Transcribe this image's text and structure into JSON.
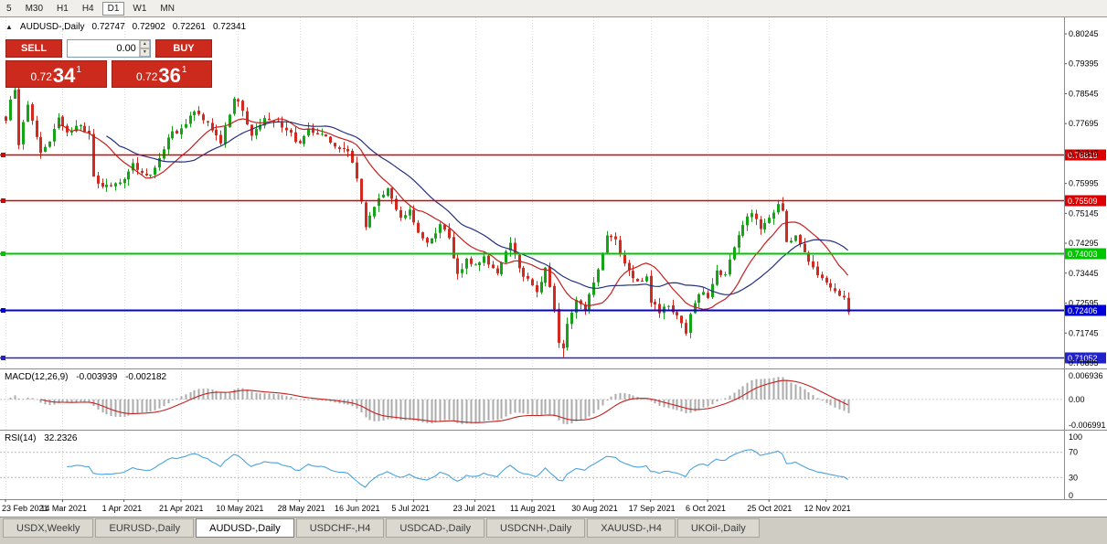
{
  "toolbar": {
    "timeframes": [
      "5",
      "M30",
      "H1",
      "H4",
      "D1",
      "W1",
      "MN"
    ],
    "active_timeframe": "D1"
  },
  "chart_header": {
    "collapse_icon": "▲",
    "symbol": "AUDUSD-,Daily",
    "open": "0.72747",
    "high": "0.72902",
    "low": "0.72261",
    "close": "0.72341"
  },
  "one_click": {
    "sell_label": "SELL",
    "buy_label": "BUY",
    "volume": "0.00",
    "sell_big": "0.72",
    "sell_pips": "34",
    "sell_sup": "1",
    "buy_big": "0.72",
    "buy_pips": "36",
    "buy_sup": "1"
  },
  "indicators": {
    "macd_label": "MACD(12,26,9)",
    "macd_value": "-0.003939",
    "macd_signal": "-0.002182",
    "rsi_label": "RSI(14)",
    "rsi_value": "32.2326"
  },
  "tabs": {
    "active": "AUDUSD-,Daily",
    "items": [
      {
        "label": "USDX,Weekly"
      },
      {
        "label": "EURUSD-,Daily"
      },
      {
        "label": "AUDUSD-,Daily"
      },
      {
        "label": "USDCHF-,H4"
      },
      {
        "label": "USDCAD-,Daily"
      },
      {
        "label": "USDCNH-,Daily"
      },
      {
        "label": "XAUUSD-,H4"
      },
      {
        "label": "UKOil-,Daily"
      }
    ]
  },
  "chart_data": {
    "type": "candlestick",
    "symbol": "AUDUSD-",
    "timeframe": "Daily",
    "candle_count": 193,
    "up_color": "#17a317",
    "down_color": "#d22a1e",
    "close_anchors": [
      [
        0,
        0.7775
      ],
      [
        1,
        0.784
      ],
      [
        2,
        0.7868
      ],
      [
        3,
        0.7706
      ],
      [
        4,
        0.7773
      ],
      [
        5,
        0.7824
      ],
      [
        8,
        0.7688
      ],
      [
        10,
        0.7716
      ],
      [
        12,
        0.7784
      ],
      [
        14,
        0.7747
      ],
      [
        17,
        0.7762
      ],
      [
        19,
        0.7742
      ],
      [
        20,
        0.7622
      ],
      [
        22,
        0.7588
      ],
      [
        25,
        0.7598
      ],
      [
        27,
        0.7612
      ],
      [
        29,
        0.7658
      ],
      [
        32,
        0.7622
      ],
      [
        34,
        0.7644
      ],
      [
        37,
        0.7732
      ],
      [
        40,
        0.7758
      ],
      [
        43,
        0.7802
      ],
      [
        46,
        0.7772
      ],
      [
        49,
        0.7712
      ],
      [
        52,
        0.7843
      ],
      [
        53,
        0.7834
      ],
      [
        56,
        0.7734
      ],
      [
        59,
        0.7786
      ],
      [
        62,
        0.7778
      ],
      [
        64,
        0.7752
      ],
      [
        67,
        0.7712
      ],
      [
        69,
        0.7756
      ],
      [
        72,
        0.7742
      ],
      [
        75,
        0.7702
      ],
      [
        78,
        0.7692
      ],
      [
        80,
        0.7612
      ],
      [
        82,
        0.7478
      ],
      [
        84,
        0.7532
      ],
      [
        87,
        0.7588
      ],
      [
        90,
        0.7502
      ],
      [
        92,
        0.7526
      ],
      [
        94,
        0.7462
      ],
      [
        96,
        0.7432
      ],
      [
        99,
        0.7482
      ],
      [
        101,
        0.7442
      ],
      [
        103,
        0.7342
      ],
      [
        105,
        0.7386
      ],
      [
        107,
        0.7366
      ],
      [
        109,
        0.7392
      ],
      [
        112,
        0.7346
      ],
      [
        115,
        0.7428
      ],
      [
        117,
        0.7358
      ],
      [
        119,
        0.7328
      ],
      [
        121,
        0.7292
      ],
      [
        123,
        0.7362
      ],
      [
        125,
        0.7242
      ],
      [
        126,
        0.7148
      ],
      [
        127,
        0.713
      ],
      [
        128,
        0.7202
      ],
      [
        130,
        0.7272
      ],
      [
        132,
        0.7242
      ],
      [
        134,
        0.7316
      ],
      [
        136,
        0.7402
      ],
      [
        137,
        0.7452
      ],
      [
        139,
        0.7442
      ],
      [
        141,
        0.7372
      ],
      [
        142,
        0.7356
      ],
      [
        144,
        0.7322
      ],
      [
        146,
        0.7336
      ],
      [
        147,
        0.7262
      ],
      [
        149,
        0.7232
      ],
      [
        151,
        0.7252
      ],
      [
        152,
        0.7236
      ],
      [
        154,
        0.7202
      ],
      [
        155,
        0.7172
      ],
      [
        156,
        0.7226
      ],
      [
        157,
        0.7262
      ],
      [
        159,
        0.7292
      ],
      [
        160,
        0.7274
      ],
      [
        162,
        0.7352
      ],
      [
        164,
        0.734
      ],
      [
        166,
        0.7418
      ],
      [
        168,
        0.7482
      ],
      [
        170,
        0.7516
      ],
      [
        172,
        0.7472
      ],
      [
        174,
        0.7502
      ],
      [
        176,
        0.7542
      ],
      [
        177,
        0.7522
      ],
      [
        178,
        0.7432
      ],
      [
        180,
        0.7452
      ],
      [
        182,
        0.7402
      ],
      [
        184,
        0.7362
      ],
      [
        186,
        0.7332
      ],
      [
        188,
        0.7306
      ],
      [
        189,
        0.7296
      ],
      [
        191,
        0.7274
      ],
      [
        192,
        0.72341
      ]
    ],
    "forced_extremes": [
      {
        "index": 127,
        "low": 0.7106
      },
      {
        "index": 176,
        "high": 0.7553
      }
    ],
    "last_ohlc": {
      "open": 0.72747,
      "high": 0.72902,
      "low": 0.72261,
      "close": 0.72341
    },
    "x_ticks": {
      "indices": [
        0,
        13,
        27,
        40,
        53,
        67,
        80,
        93,
        107,
        120,
        134,
        147,
        160,
        174,
        187
      ],
      "labels": [
        "23 Feb 2021",
        "14 Mar 2021",
        "1 Apr 2021",
        "21 Apr 2021",
        "10 May 2021",
        "28 May 2021",
        "16 Jun 2021",
        "5 Jul 2021",
        "23 Jul 2021",
        "11 Aug 2021",
        "30 Aug 2021",
        "17 Sep 2021",
        "6 Oct 2021",
        "25 Oct 2021",
        "12 Nov 2021"
      ]
    },
    "y_axis": {
      "ticks": [
        0.80245,
        0.79395,
        0.78545,
        0.77695,
        0.76845,
        0.75995,
        0.75145,
        0.74295,
        0.73445,
        0.72595,
        0.71745,
        0.70895
      ],
      "tick_labels": [
        "0.80245",
        "0.79395",
        "0.78545",
        "0.77695",
        "0.76845",
        "0.75995",
        "0.75145",
        "0.74295",
        "0.73445",
        "0.72595",
        "0.71745",
        "0.70895"
      ]
    },
    "h_lines": [
      {
        "price": 0.76819,
        "label": "0.76819",
        "color": "#dd0000",
        "width": 1.4
      },
      {
        "price": 0.75509,
        "label": "0.75509",
        "color": "#dd0000",
        "width": 1.4
      },
      {
        "price": 0.74003,
        "label": "0.74003",
        "color": "#00c400",
        "width": 2
      },
      {
        "price": 0.72406,
        "label": "0.72406",
        "color": "#0000d8",
        "width": 2
      },
      {
        "price": 0.71052,
        "label": "0.71052",
        "color": "#2222cc",
        "width": 1.4
      }
    ],
    "moving_averages": [
      {
        "period": 13,
        "color": "#c62020"
      },
      {
        "period": 24,
        "color": "#25307e"
      }
    ],
    "macd": {
      "params": [
        12,
        26,
        9
      ],
      "hist_color": "#ababab",
      "signal_color": "#c62020",
      "max": 0.006936,
      "min": -0.006991,
      "axis_labels": [
        "0.006936",
        "0.00",
        "-0.006991"
      ],
      "main_value": -0.003939,
      "signal_value": -0.002182
    },
    "rsi": {
      "period": 14,
      "color": "#4aa3dd",
      "value": 32.2326,
      "levels": [
        70,
        30
      ],
      "axis_labels": [
        "100",
        "70",
        "30",
        "0"
      ]
    }
  }
}
